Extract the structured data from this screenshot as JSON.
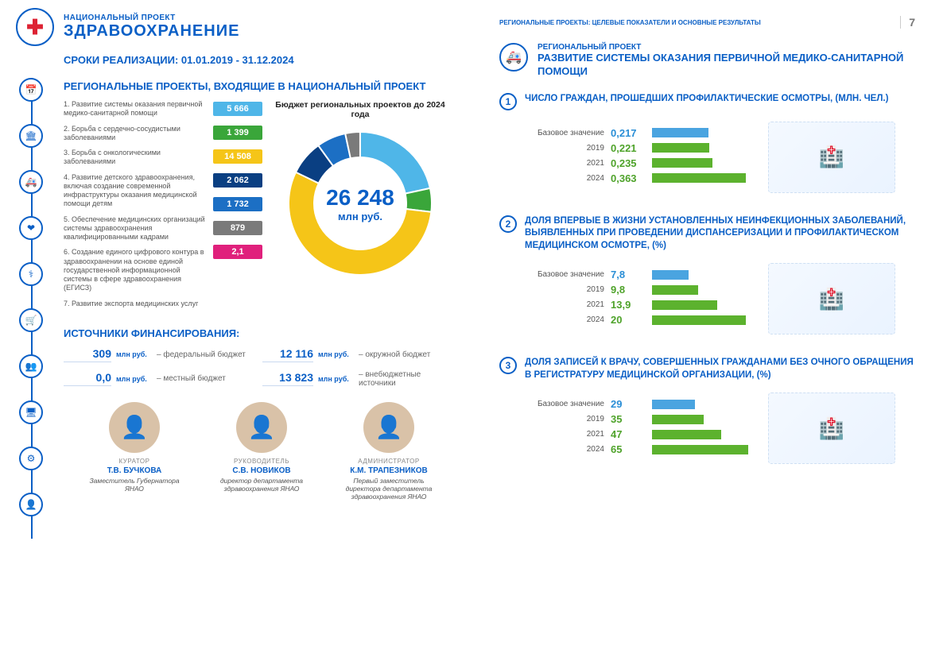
{
  "page_number": "7",
  "header": {
    "eyebrow": "НАЦИОНАЛЬНЫЙ ПРОЕКТ",
    "title": "ЗДРАВООХРАНЕНИЕ",
    "right_label": "РЕГИОНАЛЬНЫЕ ПРОЕКТЫ: ЦЕЛЕВЫЕ ПОКАЗАТЕЛИ И ОСНОВНЫЕ РЕЗУЛЬТАТЫ"
  },
  "dates_label": "СРОКИ РЕАЛИЗАЦИИ: 01.01.2019 - 31.12.2024",
  "rp_section": "РЕГИОНАЛЬНЫЕ ПРОЕКТЫ, ВХОДЯЩИЕ В НАЦИОНАЛЬНЫЙ ПРОЕКТ",
  "donut": {
    "title": "Бюджет региональных проектов до 2024 года",
    "center_value": "26 248",
    "center_unit": "млн руб.",
    "slices": [
      {
        "label": "5 666",
        "value": 5666,
        "color": "#4fb6e8"
      },
      {
        "label": "1 399",
        "value": 1399,
        "color": "#3aa63a"
      },
      {
        "label": "14 508",
        "value": 14508,
        "color": "#f5c518"
      },
      {
        "label": "2 062",
        "value": 2062,
        "color": "#0a3f82"
      },
      {
        "label": "1 732",
        "value": 1732,
        "color": "#1c6fc4"
      },
      {
        "label": "879",
        "value": 879,
        "color": "#7a7a7a"
      },
      {
        "label": "2,1",
        "value": 2.1,
        "color": "#e0207c"
      }
    ]
  },
  "rp_list": [
    "1. Развитие системы оказания первичной медико-санитарной помощи",
    "2. Борьба с сердечно-сосудистыми заболеваниями",
    "3. Борьба с онкологическими заболеваниями",
    "4. Развитие детского здравоохранения, включая создание современной инфраструктуры оказания медицинской помощи детям",
    "5. Обеспечение медицинских организаций системы здравоохранения квалифицированными кадрами",
    "6. Создание единого цифрового контура в здравоохранении на основе единой государственной информационной системы в сфере здравоохранения (ЕГИСЗ)",
    "7. Развитие экспорта медицинских услуг"
  ],
  "funding_section": "ИСТОЧНИКИ ФИНАНСИРОВАНИЯ:",
  "funding": [
    {
      "value": "309",
      "unit": "млн руб.",
      "label": "– федеральный бюджет"
    },
    {
      "value": "12 116",
      "unit": "млн руб.",
      "label": "– окружной бюджет"
    },
    {
      "value": "0,0",
      "unit": "млн руб.",
      "label": "– местный бюджет"
    },
    {
      "value": "13 823",
      "unit": "млн руб.",
      "label": "– внебюджетные источники"
    }
  ],
  "people": [
    {
      "role": "КУРАТОР",
      "name": "Т.В. БУЧКОВА",
      "title": "Заместитель Губернатора ЯНАО"
    },
    {
      "role": "РУКОВОДИТЕЛЬ",
      "name": "С.В. НОВИКОВ",
      "title": "директор департамента здравоохранения ЯНАО"
    },
    {
      "role": "АДМИНИСТРАТОР",
      "name": "К.М. ТРАПЕЗНИКОВ",
      "title": "Первый заместитель директора департамента здравоохранения ЯНАО"
    }
  ],
  "regional_project": {
    "eyebrow": "РЕГИОНАЛЬНЫЙ ПРОЕКТ",
    "title": "РАЗВИТИЕ СИСТЕМЫ ОКАЗАНИЯ ПЕРВИЧНОЙ МЕДИКО-САНИТАРНОЙ ПОМОЩИ"
  },
  "indicators": [
    {
      "num": "1",
      "title": "ЧИСЛО ГРАЖДАН, ПРОШЕДШИХ ПРОФИЛАКТИЧЕСКИЕ ОСМОТРЫ, (МЛН. ЧЕЛ.)",
      "max": 0.4,
      "rows": [
        {
          "label": "Базовое значение",
          "value": "0,217",
          "num": 0.217,
          "base": true
        },
        {
          "label": "2019",
          "value": "0,221",
          "num": 0.221,
          "base": false
        },
        {
          "label": "2021",
          "value": "0,235",
          "num": 0.235,
          "base": false
        },
        {
          "label": "2024",
          "value": "0,363",
          "num": 0.363,
          "base": false
        }
      ]
    },
    {
      "num": "2",
      "title": "ДОЛЯ ВПЕРВЫЕ В ЖИЗНИ УСТАНОВЛЕННЫХ НЕИНФЕКЦИОННЫХ ЗАБОЛЕВАНИЙ, ВЫЯВЛЕННЫХ ПРИ ПРОВЕДЕНИИ ДИСПАНСЕРИЗАЦИИ И ПРОФИЛАКТИЧЕСКОМ МЕДИЦИНСКОМ ОСМОТРЕ, (%)",
      "max": 22,
      "rows": [
        {
          "label": "Базовое значение",
          "value": "7,8",
          "num": 7.8,
          "base": true
        },
        {
          "label": "2019",
          "value": "9,8",
          "num": 9.8,
          "base": false
        },
        {
          "label": "2021",
          "value": "13,9",
          "num": 13.9,
          "base": false
        },
        {
          "label": "2024",
          "value": "20",
          "num": 20,
          "base": false
        }
      ]
    },
    {
      "num": "3",
      "title": "ДОЛЯ ЗАПИСЕЙ К ВРАЧУ, СОВЕРШЕННЫХ ГРАЖДАНАМИ БЕЗ ОЧНОГО ОБРАЩЕНИЯ В РЕГИСТРАТУРУ МЕДИЦИНСКОЙ ОРГАНИЗАЦИИ, (%)",
      "max": 70,
      "rows": [
        {
          "label": "Базовое значение",
          "value": "29",
          "num": 29,
          "base": true
        },
        {
          "label": "2019",
          "value": "35",
          "num": 35,
          "base": false
        },
        {
          "label": "2021",
          "value": "47",
          "num": 47,
          "base": false
        },
        {
          "label": "2024",
          "value": "65",
          "num": 65,
          "base": false
        }
      ]
    }
  ],
  "colors": {
    "primary": "#0a5fc6",
    "green": "#5cb22e",
    "blue_bar": "#4aa4e0"
  }
}
